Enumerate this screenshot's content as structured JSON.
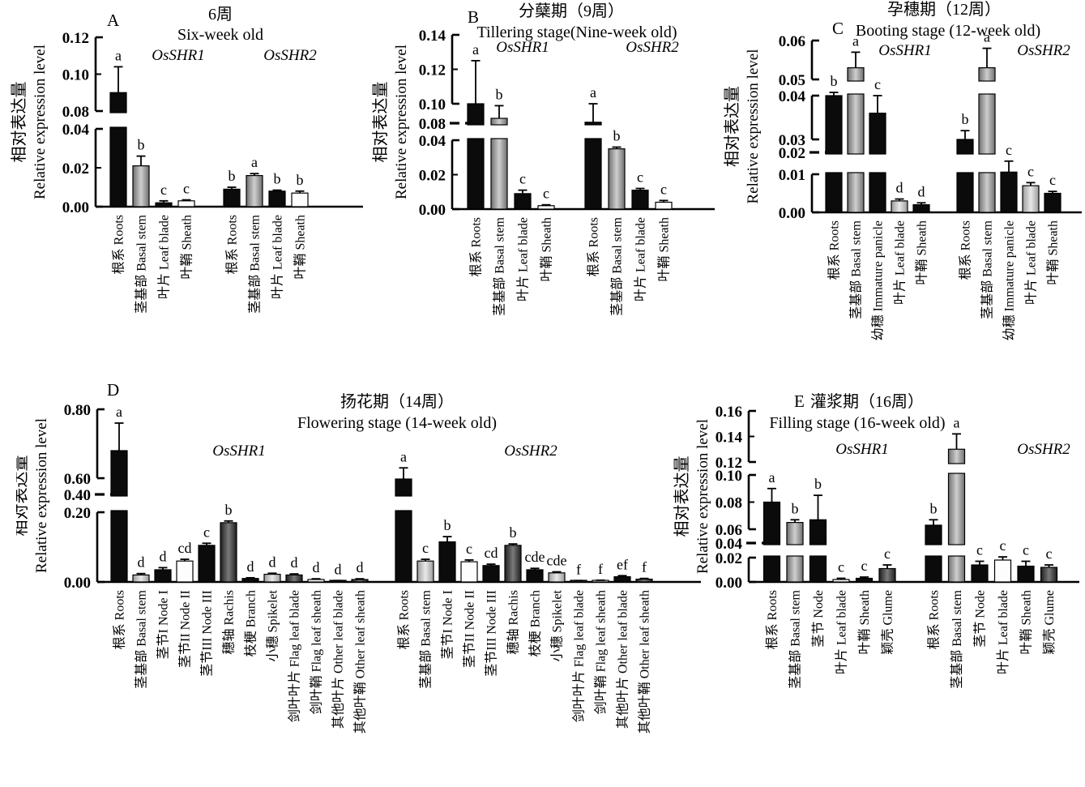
{
  "figure": {
    "ylabel_zh": "相对表达量",
    "ylabel_en": "Relative expression level",
    "genes": [
      "OsSHR1",
      "OsSHR2"
    ]
  },
  "chart_data": [
    {
      "id": "A",
      "type": "bar",
      "panel_label": "A",
      "title_zh": "6周",
      "title_en": "Six-week old",
      "ylabel_zh": "相对表达量",
      "ylabel_en": "Relative expression level",
      "genes": [
        "OsSHR1",
        "OsSHR2"
      ],
      "categories": [
        {
          "zh": "根系",
          "en": "Roots"
        },
        {
          "zh": "茎基部",
          "en": "Basal stem"
        },
        {
          "zh": "叶片",
          "en": "Leaf blade"
        },
        {
          "zh": "叶鞘",
          "en": "Sheath"
        }
      ],
      "bar_colors": [
        "black",
        "gray",
        "black",
        "white"
      ],
      "series": [
        {
          "name": "OsSHR1",
          "values": [
            0.09,
            0.021,
            0.002,
            0.003
          ],
          "errors": [
            0.014,
            0.005,
            0.001,
            0.0005
          ],
          "letters": [
            "a",
            "b",
            "c",
            "c"
          ]
        },
        {
          "name": "OsSHR2",
          "values": [
            0.009,
            0.016,
            0.008,
            0.007
          ],
          "errors": [
            0.001,
            0.001,
            0.0005,
            0.001
          ],
          "letters": [
            "b",
            "a",
            "b",
            "b"
          ]
        }
      ],
      "axis": {
        "anchors": [
          [
            0,
            255
          ],
          [
            0.04,
            159
          ],
          [
            0.08,
            137
          ],
          [
            0.12,
            46
          ]
        ],
        "brackets": [
          {
            "from": 0,
            "to": 0.04,
            "ticks": [
              0,
              0.02,
              0.04
            ]
          },
          {
            "from": 0.08,
            "to": 0.12,
            "ticks": [
              0.08,
              0.1,
              0.12
            ]
          }
        ],
        "dash_ticks": [],
        "gaps": [
          [
            0.04,
            0.08
          ]
        ],
        "tick_decimals": 2
      }
    },
    {
      "id": "B",
      "type": "bar",
      "panel_label": "B",
      "title_zh": "分蘖期（9周）",
      "title_en": "Tillering stage(Nine-week old)",
      "ylabel_zh": "相对表达量",
      "ylabel_en": "Relative expression level",
      "genes": [
        "OsSHR1",
        "OsSHR2"
      ],
      "categories": [
        {
          "zh": "根系",
          "en": "Roots"
        },
        {
          "zh": "茎基部",
          "en": "Basal stem"
        },
        {
          "zh": "叶片",
          "en": "Leaf blade"
        },
        {
          "zh": "叶鞘",
          "en": "Sheath"
        }
      ],
      "bar_colors": [
        "black",
        "gray",
        "black",
        "white"
      ],
      "series": [
        {
          "name": "OsSHR1",
          "values": [
            0.1,
            0.085,
            0.009,
            0.002
          ],
          "errors": [
            0.025,
            0.013,
            0.002,
            0.0005
          ],
          "letters": [
            "a",
            "b",
            "c",
            "c"
          ]
        },
        {
          "name": "OsSHR2",
          "values": [
            0.081,
            0.035,
            0.011,
            0.004
          ],
          "errors": [
            0.019,
            0.001,
            0.001,
            0.001
          ],
          "letters": [
            "a",
            "b",
            "c",
            "c"
          ]
        }
      ],
      "axis": {
        "anchors": [
          [
            0,
            258
          ],
          [
            0.04,
            173
          ],
          [
            0.08,
            152
          ],
          [
            0.1,
            128
          ],
          [
            0.14,
            43
          ]
        ],
        "brackets": [
          {
            "from": 0,
            "to": 0.04,
            "ticks": [
              0,
              0.02,
              0.04
            ]
          },
          {
            "from": 0.1,
            "to": 0.14,
            "ticks": [
              0.1,
              0.12,
              0.14
            ]
          }
        ],
        "dash_ticks": [
          0.08
        ],
        "gaps": [
          [
            0.04,
            0.08
          ]
        ],
        "tick_decimals": 2
      }
    },
    {
      "id": "C",
      "type": "bar",
      "panel_label": "C",
      "title_zh": "孕穗期（12周）",
      "title_en": "Booting stage (12-week old)",
      "ylabel_zh": "相对表达量",
      "ylabel_en": "Relative expression level",
      "genes": [
        "OsSHR1",
        "OsSHR2"
      ],
      "categories": [
        {
          "zh": "根系",
          "en": "Roots"
        },
        {
          "zh": "茎基部",
          "en": "Basal stem"
        },
        {
          "zh": "幼穗",
          "en": "Immature panicle"
        },
        {
          "zh": "叶片",
          "en": "Leaf blade"
        },
        {
          "zh": "叶鞘",
          "en": "Sheath"
        }
      ],
      "bar_colors": [
        "black",
        "gray",
        "black",
        "lightgray",
        "black"
      ],
      "series": [
        {
          "name": "OsSHR1",
          "values": [
            0.04,
            0.053,
            0.036,
            0.003,
            0.002
          ],
          "errors": [
            0.002,
            0.004,
            0.004,
            0.0005,
            0.0005
          ],
          "letters": [
            "b",
            "a",
            "c",
            "d",
            "d"
          ]
        },
        {
          "name": "OsSHR2",
          "values": [
            0.03,
            0.053,
            0.011,
            0.007,
            0.005
          ],
          "errors": [
            0.002,
            0.005,
            0.005,
            0.0008,
            0.0005
          ],
          "letters": [
            "b",
            "a",
            "c",
            "c",
            "c"
          ]
        }
      ],
      "axis": {
        "anchors": [
          [
            0,
            262
          ],
          [
            0.01,
            215
          ],
          [
            0.02,
            188
          ],
          [
            0.03,
            172
          ],
          [
            0.04,
            118
          ],
          [
            0.05,
            98
          ],
          [
            0.06,
            50
          ]
        ],
        "brackets": [
          {
            "from": 0,
            "to": 0.01,
            "ticks": [
              0,
              0.01
            ]
          },
          {
            "from": 0.03,
            "to": 0.04,
            "ticks": [
              0.03,
              0.04
            ]
          },
          {
            "from": 0.05,
            "to": 0.06,
            "ticks": [
              0.05,
              0.06
            ]
          }
        ],
        "dash_ticks": [
          0.02
        ],
        "gaps": [
          [
            0.01,
            0.02
          ],
          [
            0.04,
            0.05
          ]
        ],
        "tick_decimals": 2
      }
    },
    {
      "id": "D",
      "type": "bar",
      "panel_label": "D",
      "title_zh": "扬花期（14周）",
      "title_en": "Flowering stage (14-week old)",
      "ylabel_zh": "相对表达量",
      "ylabel_en": "Relative expression level",
      "genes": [
        "OsSHR1",
        "OsSHR2"
      ],
      "categories": [
        {
          "zh": "根系",
          "en": "Roots"
        },
        {
          "zh": "茎基部",
          "en": "Basal stem"
        },
        {
          "zh": "茎节I",
          "en": "Node I"
        },
        {
          "zh": "茎节II",
          "en": "Node II"
        },
        {
          "zh": "茎节III",
          "en": "Node III"
        },
        {
          "zh": "穗轴",
          "en": "Rachis"
        },
        {
          "zh": "枝梗",
          "en": "Branch"
        },
        {
          "zh": "小穗",
          "en": "Spikelet"
        },
        {
          "zh": "剑叶叶片",
          "en": "Flag leaf blade"
        },
        {
          "zh": "剑叶鞘",
          "en": "Flag leaf sheath"
        },
        {
          "zh": "其他叶片",
          "en": "Other leaf blade"
        },
        {
          "zh": "其他叶鞘",
          "en": "Other leaf sheath"
        }
      ],
      "bar_colors": [
        "black",
        "lightgray",
        "black",
        "white",
        "black",
        "darkgray",
        "black",
        "lightgray",
        "darkgray",
        "white",
        "black",
        "darkgray"
      ],
      "series": [
        {
          "name": "OsSHR1",
          "values": [
            0.68,
            0.02,
            0.035,
            0.06,
            0.105,
            0.17,
            0.01,
            0.022,
            0.02,
            0.007,
            0.003,
            0.007
          ],
          "errors": [
            0.08,
            0.004,
            0.006,
            0.005,
            0.006,
            0.005,
            0.002,
            0.003,
            0.003,
            0.002,
            0.001,
            0.002
          ],
          "letters": [
            "a",
            "d",
            "d",
            "cd",
            "c",
            "b",
            "d",
            "d",
            "d",
            "d",
            "d",
            "d"
          ]
        },
        {
          "name": "OsSHR2",
          "values": [
            0.59,
            0.06,
            0.115,
            0.058,
            0.047,
            0.105,
            0.035,
            0.026,
            0.003,
            0.004,
            0.015,
            0.008
          ],
          "errors": [
            0.04,
            0.005,
            0.015,
            0.005,
            0.004,
            0.004,
            0.004,
            0.003,
            0.001,
            0.001,
            0.003,
            0.002
          ],
          "letters": [
            "a",
            "c",
            "b",
            "c",
            "cd",
            "b",
            "cde",
            "cde",
            "f",
            "f",
            "ef",
            "f"
          ]
        }
      ],
      "axis": {
        "anchors": [
          [
            0,
            258
          ],
          [
            0.2,
            172
          ],
          [
            0.4,
            150
          ],
          [
            0.6,
            130
          ],
          [
            0.8,
            45
          ]
        ],
        "brackets": [
          {
            "from": 0,
            "to": 0.2,
            "ticks": [
              0,
              0.2
            ]
          },
          {
            "from": 0.6,
            "to": 0.8,
            "ticks": [
              0.6,
              0.8
            ]
          }
        ],
        "dash_ticks": [
          0.4
        ],
        "gaps": [
          [
            0.2,
            0.4
          ]
        ],
        "tick_decimals": 2
      }
    },
    {
      "id": "E",
      "type": "bar",
      "panel_label": "E",
      "title_zh": "灌浆期（16周）",
      "title_en": "Filling stage (16-week old)",
      "ylabel_zh": "相对表达量",
      "ylabel_en": "Relative expression level",
      "genes": [
        "OsSHR1",
        "OsSHR2"
      ],
      "categories": [
        {
          "zh": "根系",
          "en": "Roots"
        },
        {
          "zh": "茎基部",
          "en": "Basal stem"
        },
        {
          "zh": "茎节",
          "en": "Node"
        },
        {
          "zh": "叶片",
          "en": "Leaf blade"
        },
        {
          "zh": "叶鞘",
          "en": "Sheath"
        },
        {
          "zh": "颖壳",
          "en": "Glume"
        }
      ],
      "bar_colors": [
        "black",
        "gray",
        "black",
        "white",
        "black",
        "darkgray"
      ],
      "series": [
        {
          "name": "OsSHR1",
          "values": [
            0.08,
            0.065,
            0.067,
            0.002,
            0.003,
            0.011
          ],
          "errors": [
            0.01,
            0.002,
            0.018,
            0.001,
            0.001,
            0.003
          ],
          "letters": [
            "a",
            "b",
            "b",
            "c",
            "c",
            "c"
          ]
        },
        {
          "name": "OsSHR2",
          "values": [
            0.063,
            0.13,
            0.014,
            0.018,
            0.013,
            0.012
          ],
          "errors": [
            0.004,
            0.012,
            0.003,
            0.003,
            0.004,
            0.002
          ],
          "letters": [
            "b",
            "a",
            "c",
            "c",
            "c",
            "c"
          ]
        }
      ],
      "axis": {
        "anchors": [
          [
            0,
            258
          ],
          [
            0.02,
            228
          ],
          [
            0.04,
            210
          ],
          [
            0.06,
            193
          ],
          [
            0.1,
            126
          ],
          [
            0.12,
            110
          ],
          [
            0.16,
            47
          ]
        ],
        "brackets": [
          {
            "from": 0,
            "to": 0.02,
            "ticks": [
              0,
              0.02
            ]
          },
          {
            "from": 0.06,
            "to": 0.1,
            "ticks": [
              0.06,
              0.08,
              0.1
            ]
          },
          {
            "from": 0.12,
            "to": 0.16,
            "ticks": [
              0.12,
              0.14,
              0.16
            ]
          }
        ],
        "dash_ticks": [
          0.04
        ],
        "gaps": [
          [
            0.02,
            0.04
          ],
          [
            0.1,
            0.12
          ]
        ],
        "tick_decimals": 2
      }
    }
  ]
}
